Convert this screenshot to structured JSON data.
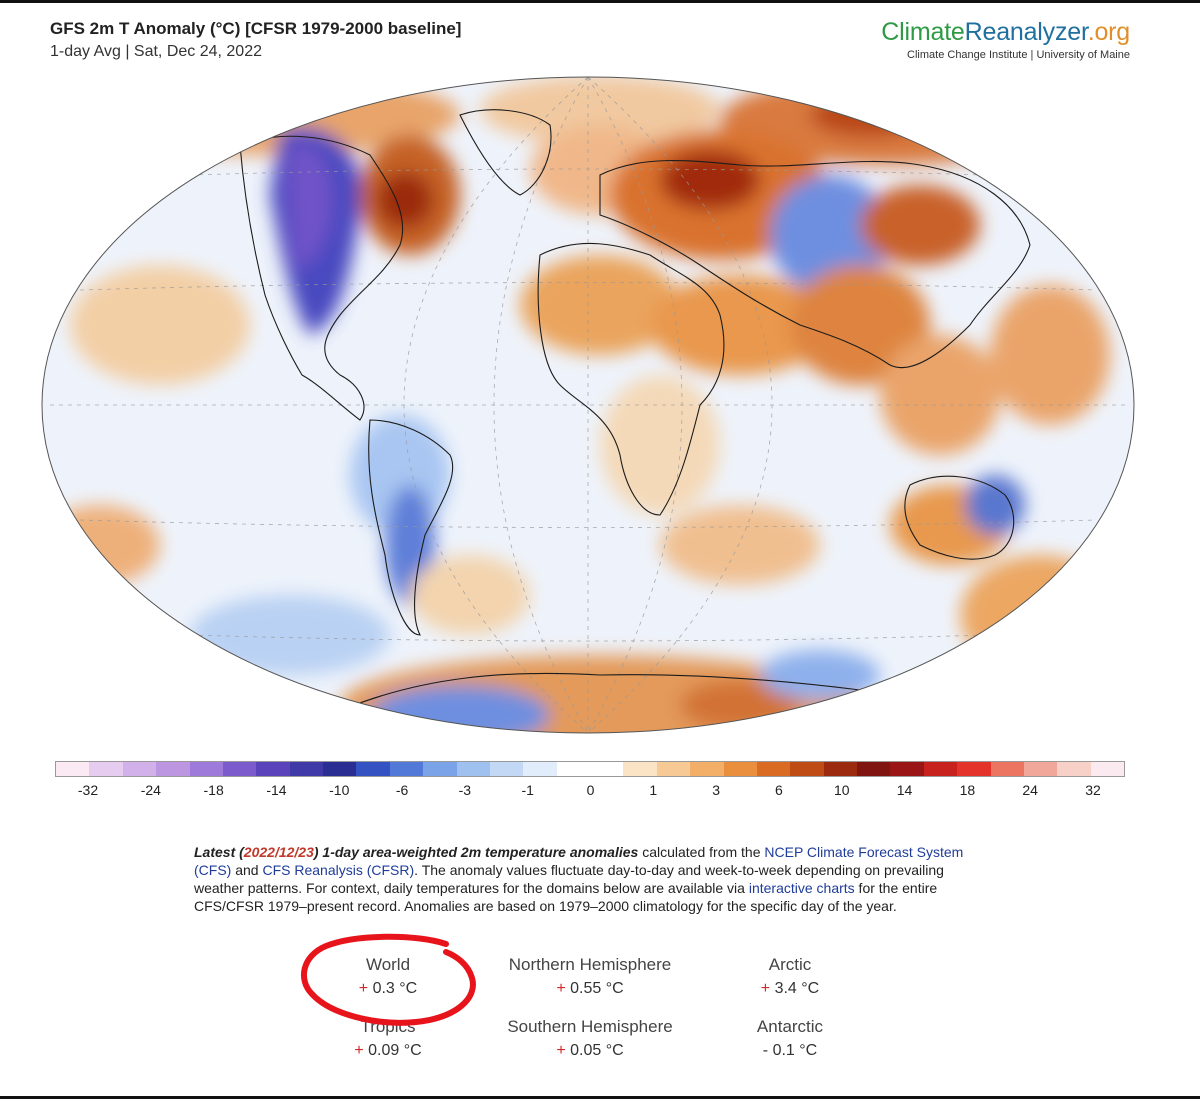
{
  "header": {
    "title": "GFS 2m T Anomaly (°C) [CFSR 1979-2000 baseline]",
    "subtitle": "1-day Avg | Sat, Dec 24, 2022"
  },
  "brand": {
    "name_part1": "Climate",
    "name_part2": "Reanalyzer",
    "name_part3": ".org",
    "subtitle": "Climate Change Institute | University of Maine"
  },
  "colorbar": {
    "colors": [
      "#fbeaf3",
      "#e6ccef",
      "#d2b1ea",
      "#bd96e2",
      "#9e7adb",
      "#7c5ccc",
      "#5b43bb",
      "#3f3aa8",
      "#2a2e93",
      "#3552c2",
      "#5379d8",
      "#7ba3e7",
      "#9fc1f0",
      "#c2d8f5",
      "#e1edfa",
      "#ffffff",
      "#ffffff",
      "#fbe3c6",
      "#f7c994",
      "#f3ae67",
      "#e98f3e",
      "#d96c22",
      "#bf4c14",
      "#9b2a0e",
      "#7f1410",
      "#9a1616",
      "#c8221f",
      "#e4332a",
      "#ec7561",
      "#f1a79a",
      "#f7d1c8",
      "#fbeaf0"
    ],
    "ticks": [
      "-32",
      "-24",
      "-18",
      "-14",
      "-10",
      "-6",
      "-3",
      "-1",
      "0",
      "1",
      "3",
      "6",
      "10",
      "14",
      "18",
      "24",
      "32"
    ]
  },
  "description": {
    "latest_prefix": "Latest (",
    "latest_date": "2022/12/23",
    "latest_suffix": ") 1-day area-weighted 2m temperature anomalies",
    "text1": " calculated from the ",
    "link1": "NCEP Climate Forecast System (CFS)",
    "text2": " and ",
    "link2": "CFS Reanalysis (CFSR)",
    "text3": ". The anomaly values fluctuate day-to-day and week-to-week depending on prevailing weather patterns. For context, daily temperatures for the domains below are available via ",
    "link3": "interactive charts",
    "text4": " for the entire CFS/CFSR 1979–present record. Anomalies are based on 1979–2000 climatology for the specific day of the year."
  },
  "stats": {
    "world": {
      "label": "World",
      "sign": "+",
      "value": "0.3 °C"
    },
    "nh": {
      "label": "Northern Hemisphere",
      "sign": "+",
      "value": "0.55 °C"
    },
    "arctic": {
      "label": "Arctic",
      "sign": "+",
      "value": "3.4 °C"
    },
    "tropics": {
      "label": "Tropics",
      "sign": "+",
      "value": "0.09 °C"
    },
    "sh": {
      "label": "Southern Hemisphere",
      "sign": "+",
      "value": "0.05 °C"
    },
    "antarctic": {
      "label": "Antarctic",
      "sign": "-",
      "value": "0.1 °C"
    }
  },
  "annotation": {
    "circle_color": "#e8141c"
  }
}
